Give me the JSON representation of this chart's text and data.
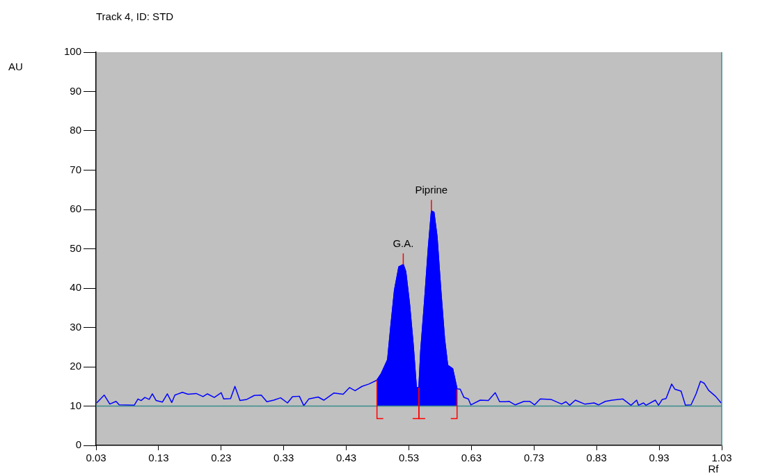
{
  "chart_data": {
    "type": "line",
    "title": "Track 4, ID: STD",
    "xlabel": "Rf",
    "ylabel": "AU",
    "xlim": [
      0.03,
      1.03
    ],
    "xticks": [
      0.03,
      0.13,
      0.23,
      0.33,
      0.43,
      0.53,
      0.63,
      0.73,
      0.83,
      0.93,
      1.03
    ],
    "ylim": [
      0,
      100
    ],
    "yticks": [
      0,
      10,
      20,
      30,
      40,
      50,
      60,
      70,
      80,
      90,
      100
    ],
    "grid": false,
    "legend": false,
    "marker": "none",
    "ref_lines": [
      {
        "axis": "y",
        "value": 10,
        "color": "#3a8c8c"
      }
    ],
    "annotations": [
      {
        "text": "G.A.",
        "x": 0.521,
        "y": 46.0
      },
      {
        "text": "Piprine",
        "x": 0.566,
        "y": 59.6
      }
    ],
    "series": [
      {
        "type": "line",
        "color": "#0000ff",
        "x": [
          0.031,
          0.043,
          0.052,
          0.062,
          0.067,
          0.091,
          0.097,
          0.102,
          0.108,
          0.115,
          0.12,
          0.126,
          0.136,
          0.144,
          0.151,
          0.156,
          0.168,
          0.177,
          0.19,
          0.201,
          0.208,
          0.219,
          0.23,
          0.234,
          0.245,
          0.252,
          0.26,
          0.271,
          0.283,
          0.294,
          0.303,
          0.314,
          0.325,
          0.336,
          0.344,
          0.355,
          0.362,
          0.37,
          0.385,
          0.394,
          0.41,
          0.425,
          0.435,
          0.444,
          0.455,
          0.466,
          0.479,
          0.486,
          0.496,
          0.501,
          0.507,
          0.514,
          0.521,
          0.525,
          0.531,
          0.537,
          0.542,
          0.546,
          0.549,
          0.555,
          0.561,
          0.566,
          0.57,
          0.575,
          0.581,
          0.587,
          0.592,
          0.6,
          0.607,
          0.612,
          0.618,
          0.625,
          0.629,
          0.644,
          0.657,
          0.668,
          0.675,
          0.684,
          0.69,
          0.7,
          0.714,
          0.723,
          0.731,
          0.74,
          0.757,
          0.774,
          0.781,
          0.787,
          0.796,
          0.811,
          0.826,
          0.833,
          0.844,
          0.855,
          0.872,
          0.885,
          0.894,
          0.897,
          0.905,
          0.909,
          0.924,
          0.929,
          0.935,
          0.941,
          0.95,
          0.955,
          0.965,
          0.972,
          0.981,
          0.989,
          0.996,
          1.002,
          1.009,
          1.02,
          1.029
        ],
        "values": [
          10.8,
          12.8,
          10.5,
          11.2,
          10.3,
          10.2,
          11.8,
          11.4,
          12.2,
          11.7,
          13.1,
          11.4,
          11.0,
          13.1,
          10.9,
          12.8,
          13.5,
          13.0,
          13.2,
          12.4,
          13.1,
          12.2,
          13.4,
          11.8,
          11.9,
          15.0,
          11.4,
          11.7,
          12.7,
          12.8,
          11.1,
          11.5,
          12.1,
          10.8,
          12.4,
          12.5,
          10.1,
          11.8,
          12.3,
          11.5,
          13.3,
          13.0,
          14.7,
          13.9,
          15.0,
          15.6,
          16.6,
          18.3,
          21.8,
          30.1,
          39.5,
          45.4,
          46.0,
          44.2,
          36.0,
          25.4,
          14.7,
          14.7,
          24.2,
          36.6,
          50.1,
          59.6,
          59.3,
          53.1,
          39.5,
          27.1,
          20.4,
          19.5,
          14.4,
          14.3,
          12.2,
          11.8,
          10.3,
          11.5,
          11.4,
          13.4,
          11.1,
          11.1,
          11.2,
          10.3,
          11.2,
          11.2,
          10.3,
          11.8,
          11.7,
          10.5,
          11.1,
          10.2,
          11.5,
          10.5,
          10.8,
          10.3,
          11.2,
          11.5,
          11.8,
          10.2,
          11.5,
          10.2,
          10.8,
          10.2,
          11.5,
          10.2,
          11.7,
          11.9,
          15.6,
          14.3,
          13.8,
          10.2,
          10.3,
          13.1,
          16.3,
          15.8,
          14.0,
          12.5,
          10.8
        ]
      },
      {
        "type": "area",
        "color": "#0000ff",
        "x": [
          0.479,
          0.486,
          0.496,
          0.501,
          0.507,
          0.514,
          0.521,
          0.525,
          0.531,
          0.537,
          0.542,
          0.546
        ],
        "values": [
          16.6,
          18.3,
          21.8,
          30.1,
          39.5,
          45.4,
          46.0,
          44.2,
          36.0,
          25.4,
          14.7,
          14.7
        ]
      },
      {
        "type": "area",
        "color": "#0000ff",
        "x": [
          0.546,
          0.549,
          0.555,
          0.561,
          0.566,
          0.57,
          0.575,
          0.581,
          0.587,
          0.592,
          0.6,
          0.607
        ],
        "values": [
          14.7,
          24.2,
          36.6,
          50.1,
          59.6,
          59.3,
          53.1,
          39.5,
          27.1,
          20.4,
          19.5,
          14.3
        ]
      }
    ]
  }
}
